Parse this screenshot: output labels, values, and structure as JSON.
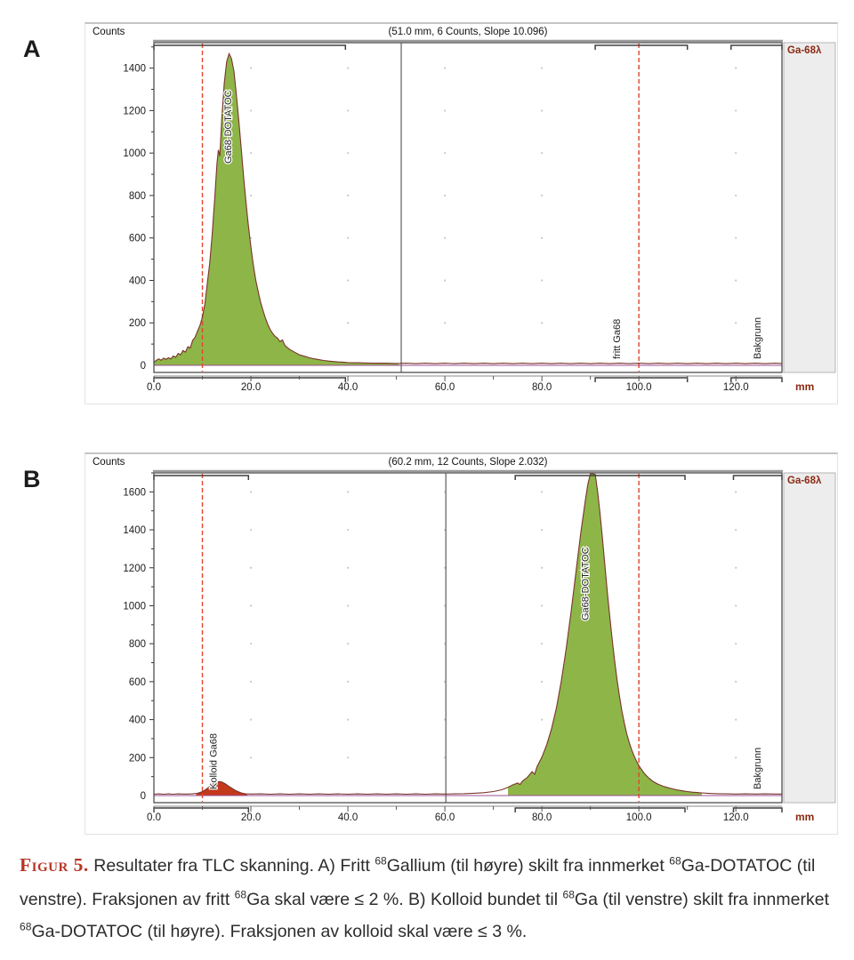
{
  "figure_labels": {
    "a": "A",
    "b": "B"
  },
  "colors": {
    "fill_green": "#8eb548",
    "fill_red": "#c2391c",
    "stroke": "#7a342c",
    "dashed": "#e2442b",
    "baseline": "#9b4f96",
    "accent_darkred": "#8a2a12",
    "figure_label_red": "#b93425"
  },
  "caption": {
    "label": "Figur 5.",
    "segments": [
      {
        "t": " Resultater fra TLC skanning. A) Fritt "
      },
      {
        "sup": "68"
      },
      {
        "t": "Gallium (til høyre) skilt fra innmerket "
      },
      {
        "sup": "68"
      },
      {
        "t": "Ga-DOTATOC (til venstre). Fraksjonen av fritt "
      },
      {
        "sup": "68"
      },
      {
        "t": "Ga skal være ≤ 2 %. B) Kolloid bundet til "
      },
      {
        "sup": "68"
      },
      {
        "t": "Ga (til venstre) skilt fra innmerket "
      },
      {
        "sup": "68"
      },
      {
        "t": "Ga-DOTATOC (til høyre). Fraksjonen av kolloid skal være ≤ 3 %."
      }
    ]
  },
  "chart_data": [
    {
      "id": "A",
      "type": "area",
      "title": "(51.0 mm, 6 Counts, Slope 10.096)",
      "ylabel": "Counts",
      "xunit": "mm",
      "tab_label": "Ga-68λ",
      "xlim": [
        0,
        129.5
      ],
      "ylim": [
        0,
        1520
      ],
      "xticks": [
        0,
        20,
        40,
        60,
        80,
        100,
        120
      ],
      "yticks": [
        0,
        200,
        400,
        600,
        800,
        1000,
        1200,
        1400
      ],
      "marker_lines_dashed": [
        10,
        100
      ],
      "marker_line_solid": 51.0,
      "regions": [
        [
          0,
          39.5
        ],
        [
          91,
          110
        ],
        [
          119,
          129.5
        ]
      ],
      "fills": [
        {
          "from": 0,
          "to": 51,
          "color": "fill_green"
        }
      ],
      "annotations": [
        {
          "text": "Ga68-DOTATOC",
          "x": 15.3,
          "anchor": "top",
          "offset": 140
        },
        {
          "text": "fritt Ga68",
          "x": 95.5,
          "anchor": "bottom"
        },
        {
          "text": "Bakgrunn",
          "x": 124.5,
          "anchor": "bottom"
        }
      ],
      "points": [
        [
          0,
          14
        ],
        [
          0.5,
          24
        ],
        [
          1,
          30
        ],
        [
          1.5,
          24
        ],
        [
          2,
          34
        ],
        [
          2.5,
          28
        ],
        [
          3,
          36
        ],
        [
          3.5,
          30
        ],
        [
          4,
          44
        ],
        [
          4.5,
          38
        ],
        [
          5,
          56
        ],
        [
          5.5,
          50
        ],
        [
          6,
          70
        ],
        [
          6.5,
          62
        ],
        [
          7,
          88
        ],
        [
          7.5,
          82
        ],
        [
          8,
          118
        ],
        [
          8.5,
          132
        ],
        [
          9,
          162
        ],
        [
          9.5,
          188
        ],
        [
          10,
          228
        ],
        [
          10.5,
          285
        ],
        [
          11,
          385
        ],
        [
          11.5,
          480
        ],
        [
          12,
          610
        ],
        [
          12.5,
          770
        ],
        [
          13,
          950
        ],
        [
          13.3,
          1015
        ],
        [
          13.6,
          985
        ],
        [
          14,
          1160
        ],
        [
          14.5,
          1330
        ],
        [
          15,
          1430
        ],
        [
          15.5,
          1468
        ],
        [
          16,
          1445
        ],
        [
          16.5,
          1385
        ],
        [
          17,
          1275
        ],
        [
          17.5,
          1155
        ],
        [
          18,
          1025
        ],
        [
          18.5,
          885
        ],
        [
          19,
          765
        ],
        [
          19.5,
          655
        ],
        [
          20,
          560
        ],
        [
          20.5,
          472
        ],
        [
          21,
          402
        ],
        [
          21.5,
          348
        ],
        [
          22,
          298
        ],
        [
          22.5,
          258
        ],
        [
          23,
          222
        ],
        [
          23.5,
          192
        ],
        [
          24,
          168
        ],
        [
          24.5,
          150
        ],
        [
          25,
          136
        ],
        [
          25.5,
          128
        ],
        [
          26,
          112
        ],
        [
          26.5,
          120
        ],
        [
          27,
          94
        ],
        [
          27.5,
          84
        ],
        [
          28,
          75
        ],
        [
          29,
          62
        ],
        [
          30,
          50
        ],
        [
          31,
          43
        ],
        [
          32,
          36
        ],
        [
          33,
          31
        ],
        [
          34,
          27
        ],
        [
          35,
          23
        ],
        [
          36,
          20
        ],
        [
          37,
          18
        ],
        [
          38,
          16
        ],
        [
          39,
          15
        ],
        [
          40,
          13
        ],
        [
          42,
          12
        ],
        [
          44,
          11
        ],
        [
          46,
          10
        ],
        [
          48,
          10
        ],
        [
          50,
          9
        ],
        [
          52,
          10
        ],
        [
          54,
          8
        ],
        [
          56,
          10
        ],
        [
          58,
          8
        ],
        [
          60,
          10
        ],
        [
          62,
          8
        ],
        [
          64,
          10
        ],
        [
          66,
          8
        ],
        [
          68,
          10
        ],
        [
          70,
          8
        ],
        [
          72,
          10
        ],
        [
          74,
          8
        ],
        [
          76,
          10
        ],
        [
          78,
          8
        ],
        [
          80,
          10
        ],
        [
          82,
          8
        ],
        [
          84,
          10
        ],
        [
          86,
          8
        ],
        [
          88,
          10
        ],
        [
          90,
          8
        ],
        [
          92,
          10
        ],
        [
          94,
          8
        ],
        [
          96,
          10
        ],
        [
          98,
          8
        ],
        [
          100,
          10
        ],
        [
          102,
          8
        ],
        [
          104,
          10
        ],
        [
          106,
          8
        ],
        [
          108,
          10
        ],
        [
          110,
          8
        ],
        [
          112,
          10
        ],
        [
          114,
          8
        ],
        [
          116,
          10
        ],
        [
          118,
          8
        ],
        [
          120,
          10
        ],
        [
          122,
          8
        ],
        [
          124,
          10
        ],
        [
          126,
          8
        ],
        [
          128,
          10
        ],
        [
          129.5,
          9
        ]
      ]
    },
    {
      "id": "B",
      "type": "area",
      "title": "(60.2 mm, 12 Counts, Slope 2.032)",
      "ylabel": "Counts",
      "xunit": "mm",
      "tab_label": "Ga-68λ",
      "xlim": [
        0,
        129.5
      ],
      "ylim": [
        0,
        1700
      ],
      "xticks": [
        0,
        20,
        40,
        60,
        80,
        100,
        120
      ],
      "yticks": [
        0,
        200,
        400,
        600,
        800,
        1000,
        1200,
        1400,
        1600
      ],
      "marker_lines_dashed": [
        10,
        100
      ],
      "marker_line_solid": 60.2,
      "regions": [
        [
          0,
          19.5
        ],
        [
          74.5,
          109.5
        ],
        [
          119.5,
          129.5
        ]
      ],
      "fills": [
        {
          "from": 8.5,
          "to": 19.5,
          "color": "fill_red"
        },
        {
          "from": 73,
          "to": 113,
          "color": "fill_green"
        }
      ],
      "annotations": [
        {
          "text": "Kolloid Ga68",
          "x": 12.3,
          "anchor": "bottom"
        },
        {
          "text": "Ga68-DOTATOC",
          "x": 89,
          "anchor": "top",
          "offset": 170
        },
        {
          "text": "Bakgrunn",
          "x": 124.5,
          "anchor": "bottom"
        }
      ],
      "points": [
        [
          0,
          7
        ],
        [
          1,
          9
        ],
        [
          2,
          7
        ],
        [
          3,
          9
        ],
        [
          4,
          7
        ],
        [
          5,
          9
        ],
        [
          6,
          8
        ],
        [
          7,
          8
        ],
        [
          8,
          9
        ],
        [
          9,
          12
        ],
        [
          10,
          20
        ],
        [
          10.5,
          28
        ],
        [
          11,
          38
        ],
        [
          11.5,
          48
        ],
        [
          12,
          58
        ],
        [
          12.5,
          65
        ],
        [
          13,
          70
        ],
        [
          13.5,
          74
        ],
        [
          14,
          71
        ],
        [
          14.5,
          65
        ],
        [
          15,
          57
        ],
        [
          15.5,
          48
        ],
        [
          16,
          40
        ],
        [
          16.5,
          32
        ],
        [
          17,
          25
        ],
        [
          17.5,
          19
        ],
        [
          18,
          14
        ],
        [
          18.5,
          11
        ],
        [
          19,
          9
        ],
        [
          20,
          8
        ],
        [
          22,
          9
        ],
        [
          24,
          7
        ],
        [
          26,
          9
        ],
        [
          28,
          7
        ],
        [
          30,
          9
        ],
        [
          32,
          7
        ],
        [
          34,
          9
        ],
        [
          36,
          7
        ],
        [
          38,
          9
        ],
        [
          40,
          7
        ],
        [
          42,
          9
        ],
        [
          44,
          7
        ],
        [
          46,
          9
        ],
        [
          48,
          7
        ],
        [
          50,
          9
        ],
        [
          52,
          7
        ],
        [
          54,
          9
        ],
        [
          56,
          7
        ],
        [
          58,
          9
        ],
        [
          60,
          8
        ],
        [
          62,
          9
        ],
        [
          64,
          10
        ],
        [
          66,
          12
        ],
        [
          68,
          15
        ],
        [
          70,
          21
        ],
        [
          71,
          26
        ],
        [
          72,
          33
        ],
        [
          73,
          43
        ],
        [
          74,
          56
        ],
        [
          75,
          66
        ],
        [
          75.5,
          58
        ],
        [
          76,
          76
        ],
        [
          77,
          96
        ],
        [
          78,
          126
        ],
        [
          78.5,
          112
        ],
        [
          79,
          152
        ],
        [
          80,
          202
        ],
        [
          81,
          268
        ],
        [
          82,
          352
        ],
        [
          83,
          462
        ],
        [
          84,
          602
        ],
        [
          85,
          772
        ],
        [
          86,
          962
        ],
        [
          87,
          1172
        ],
        [
          88,
          1382
        ],
        [
          89,
          1562
        ],
        [
          89.5,
          1642
        ],
        [
          90,
          1705
        ],
        [
          90.5,
          1730
        ],
        [
          91,
          1692
        ],
        [
          91.5,
          1602
        ],
        [
          92,
          1482
        ],
        [
          92.5,
          1352
        ],
        [
          93,
          1212
        ],
        [
          93.5,
          1072
        ],
        [
          94,
          942
        ],
        [
          94.5,
          822
        ],
        [
          95,
          712
        ],
        [
          95.5,
          612
        ],
        [
          96,
          522
        ],
        [
          96.5,
          446
        ],
        [
          97,
          382
        ],
        [
          97.5,
          326
        ],
        [
          98,
          280
        ],
        [
          98.5,
          242
        ],
        [
          99,
          210
        ],
        [
          99.5,
          182
        ],
        [
          100,
          158
        ],
        [
          100.5,
          139
        ],
        [
          101,
          121
        ],
        [
          101.5,
          106
        ],
        [
          102,
          93
        ],
        [
          103,
          73
        ],
        [
          104,
          59
        ],
        [
          105,
          49
        ],
        [
          106,
          41
        ],
        [
          107,
          35
        ],
        [
          108,
          29
        ],
        [
          109,
          25
        ],
        [
          110,
          21
        ],
        [
          111,
          18
        ],
        [
          112,
          16
        ],
        [
          113,
          14
        ],
        [
          114,
          12
        ],
        [
          115,
          11
        ],
        [
          116,
          10
        ],
        [
          118,
          9
        ],
        [
          120,
          8
        ],
        [
          122,
          9
        ],
        [
          124,
          8
        ],
        [
          126,
          9
        ],
        [
          128,
          8
        ],
        [
          129.5,
          8
        ]
      ]
    }
  ]
}
